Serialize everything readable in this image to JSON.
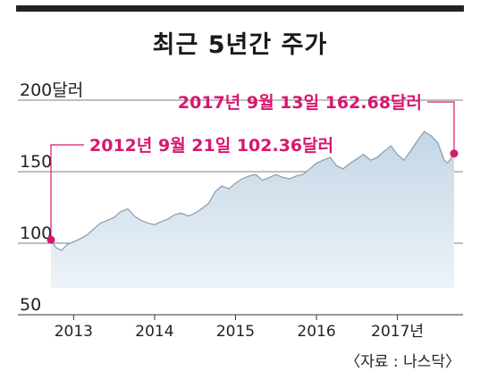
{
  "title": "최근 5년간 주가",
  "source": "〈자료 : 나스닥〉",
  "colors": {
    "line": "#8a9aaa",
    "fill_top": "#c3d6e5",
    "fill_bottom": "#edf3f8",
    "accent": "#d6186f",
    "grid": "#555555"
  },
  "chart_data": {
    "type": "area",
    "title": "최근 5년간 주가",
    "ylim": [
      50,
      210
    ],
    "y_ticks": [
      {
        "value": 50,
        "label": "50"
      },
      {
        "value": 100,
        "label": "100"
      },
      {
        "value": 150,
        "label": "150"
      },
      {
        "value": 200,
        "label": "200달러"
      }
    ],
    "x_ticks": [
      {
        "value": 2013.0,
        "label": "2013"
      },
      {
        "value": 2014.0,
        "label": "2014"
      },
      {
        "value": 2015.0,
        "label": "2015"
      },
      {
        "value": 2016.0,
        "label": "2016"
      },
      {
        "value": 2017.0,
        "label": "2017년"
      }
    ],
    "xlim": [
      2012.6,
      2017.8
    ],
    "series": [
      {
        "x": [
          2012.72,
          2012.78,
          2012.85,
          2012.92,
          2013.0,
          2013.08,
          2013.17,
          2013.25,
          2013.33,
          2013.42,
          2013.5,
          2013.58,
          2013.67,
          2013.75,
          2013.83,
          2013.92,
          2014.0,
          2014.08,
          2014.17,
          2014.25,
          2014.33,
          2014.42,
          2014.5,
          2014.58,
          2014.67,
          2014.75,
          2014.83,
          2014.92,
          2015.0,
          2015.08,
          2015.17,
          2015.25,
          2015.33,
          2015.42,
          2015.5,
          2015.58,
          2015.67,
          2015.75,
          2015.83,
          2015.92,
          2016.0,
          2016.08,
          2016.17,
          2016.25,
          2016.33,
          2016.42,
          2016.5,
          2016.58,
          2016.67,
          2016.75,
          2016.83,
          2016.92,
          2017.0,
          2017.08,
          2017.17,
          2017.25,
          2017.33,
          2017.42,
          2017.5,
          2017.58,
          2017.62,
          2017.7
        ],
        "y": [
          102.4,
          97,
          95,
          99,
          101,
          103,
          106,
          110,
          114,
          116,
          118,
          122,
          124,
          119,
          116,
          114,
          113,
          115,
          117,
          120,
          121,
          119,
          121,
          124,
          128,
          136,
          140,
          138,
          142,
          145,
          147,
          148,
          144,
          146,
          148,
          146,
          145,
          147,
          148,
          152,
          156,
          158,
          160,
          154,
          152,
          156,
          159,
          162,
          158,
          160,
          164,
          168,
          162,
          158,
          165,
          172,
          178,
          175,
          170,
          158,
          156,
          162.68
        ]
      }
    ],
    "annotations": [
      {
        "text": "2012년 9월 21일 102.36달러",
        "x": 2012.72,
        "y": 102.36
      },
      {
        "text": "2017년 9월 13일 162.68달러",
        "x": 2017.7,
        "y": 162.68
      }
    ]
  }
}
